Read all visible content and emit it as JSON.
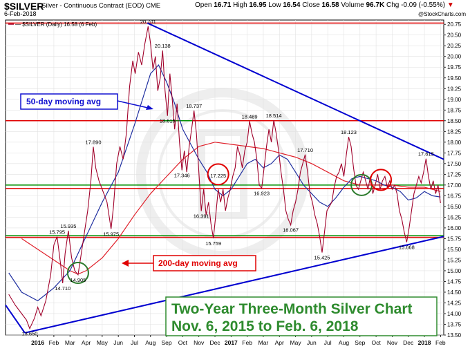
{
  "header": {
    "symbol": "$SILVER",
    "description": "Silver - Continuous Contract (EOD)",
    "exchange": "CME",
    "date": "6-Feb-2018",
    "open_label": "Open",
    "open": "16.71",
    "high_label": "High",
    "high": "16.95",
    "low_label": "Low",
    "low": "16.54",
    "close_label": "Close",
    "close": "16.58",
    "volume_label": "Volume",
    "volume": "96.7K",
    "chg_label": "Chg",
    "chg": "-0.09 (-0.55%)",
    "copyright": "@StockCharts.com"
  },
  "chart_data": {
    "type": "line",
    "legend": "— $SILVER (Daily) 16.58 (6 Feb)",
    "ylim": [
      13.5,
      20.85
    ],
    "yticks": [
      13.5,
      13.75,
      14.0,
      14.25,
      14.5,
      14.75,
      15.0,
      15.25,
      15.5,
      15.75,
      16.0,
      16.25,
      16.5,
      16.75,
      17.0,
      17.25,
      17.5,
      17.75,
      18.0,
      18.25,
      18.5,
      18.75,
      19.0,
      19.25,
      19.5,
      19.75,
      20.0,
      20.25,
      20.5,
      20.75
    ],
    "ytick_labels": [
      "13.50",
      "13.75",
      "14.00",
      "14.25",
      "14.50",
      "14.75",
      "15.00",
      "15.25",
      "15.50",
      "15.75",
      "16.00",
      "16.25",
      "16.50",
      "16.75",
      "17.00",
      "17.25",
      "17.50",
      "17.75",
      "18.00",
      "18.25",
      "18.50",
      "18.75",
      "19.00",
      "19.25",
      "19.50",
      "19.75",
      "20.00",
      "20.25",
      "20.50",
      "20.75"
    ],
    "xlim": [
      0,
      27.2
    ],
    "months": [
      {
        "label": "2016",
        "x": 2.0,
        "bold": true
      },
      {
        "label": "Feb",
        "x": 3.0
      },
      {
        "label": "Mar",
        "x": 4.0
      },
      {
        "label": "Apr",
        "x": 5.0
      },
      {
        "label": "May",
        "x": 6.0
      },
      {
        "label": "Jun",
        "x": 7.0
      },
      {
        "label": "Jul",
        "x": 8.0
      },
      {
        "label": "Aug",
        "x": 9.0
      },
      {
        "label": "Sep",
        "x": 10.0
      },
      {
        "label": "Oct",
        "x": 11.0
      },
      {
        "label": "Nov",
        "x": 12.0
      },
      {
        "label": "Dec",
        "x": 13.0
      },
      {
        "label": "2017",
        "x": 14.0,
        "bold": true
      },
      {
        "label": "Feb",
        "x": 15.0
      },
      {
        "label": "Mar",
        "x": 16.0
      },
      {
        "label": "Apr",
        "x": 17.0
      },
      {
        "label": "May",
        "x": 18.0
      },
      {
        "label": "Jun",
        "x": 19.0
      },
      {
        "label": "Jul",
        "x": 20.0
      },
      {
        "label": "Aug",
        "x": 21.0
      },
      {
        "label": "Sep",
        "x": 22.0
      },
      {
        "label": "Oct",
        "x": 23.0
      },
      {
        "label": "Nov",
        "x": 24.0
      },
      {
        "label": "Dec",
        "x": 25.0
      },
      {
        "label": "2018",
        "x": 26.0,
        "bold": true
      },
      {
        "label": "Feb",
        "x": 27.0
      }
    ],
    "price": [
      [
        0.2,
        14.45
      ],
      [
        0.6,
        14.2
      ],
      [
        1.0,
        14.0
      ],
      [
        1.3,
        13.85
      ],
      [
        1.5,
        13.65
      ],
      [
        1.8,
        13.9
      ],
      [
        2.0,
        14.15
      ],
      [
        2.2,
        13.95
      ],
      [
        2.5,
        14.3
      ],
      [
        2.8,
        14.9
      ],
      [
        3.0,
        15.6
      ],
      [
        3.2,
        15.795
      ],
      [
        3.4,
        15.2
      ],
      [
        3.55,
        14.71
      ],
      [
        3.7,
        15.4
      ],
      [
        3.9,
        15.935
      ],
      [
        4.1,
        15.3
      ],
      [
        4.3,
        15.0
      ],
      [
        4.5,
        14.905
      ],
      [
        4.7,
        15.4
      ],
      [
        4.9,
        15.9
      ],
      [
        5.1,
        16.4
      ],
      [
        5.3,
        17.1
      ],
      [
        5.45,
        17.89
      ],
      [
        5.6,
        17.4
      ],
      [
        5.8,
        17.1
      ],
      [
        6.0,
        16.9
      ],
      [
        6.3,
        16.6
      ],
      [
        6.55,
        15.975
      ],
      [
        6.7,
        16.5
      ],
      [
        6.9,
        17.5
      ],
      [
        7.1,
        17.9
      ],
      [
        7.3,
        17.6
      ],
      [
        7.5,
        18.2
      ],
      [
        7.7,
        19.3
      ],
      [
        7.9,
        19.9
      ],
      [
        8.05,
        19.6
      ],
      [
        8.25,
        20.1
      ],
      [
        8.45,
        19.8
      ],
      [
        8.65,
        20.3
      ],
      [
        8.85,
        20.701
      ],
      [
        9.0,
        20.3
      ],
      [
        9.15,
        19.7
      ],
      [
        9.3,
        20.0
      ],
      [
        9.45,
        19.2
      ],
      [
        9.6,
        19.5
      ],
      [
        9.75,
        20.138
      ],
      [
        9.9,
        19.2
      ],
      [
        10.05,
        18.615
      ],
      [
        10.2,
        19.6
      ],
      [
        10.35,
        19.0
      ],
      [
        10.5,
        18.3
      ],
      [
        10.65,
        18.9
      ],
      [
        10.8,
        18.0
      ],
      [
        10.95,
        17.346
      ],
      [
        11.1,
        17.8
      ],
      [
        11.25,
        17.3
      ],
      [
        11.4,
        17.9
      ],
      [
        11.55,
        18.3
      ],
      [
        11.7,
        18.737
      ],
      [
        11.85,
        18.2
      ],
      [
        12.0,
        17.3
      ],
      [
        12.15,
        16.391
      ],
      [
        12.3,
        16.9
      ],
      [
        12.45,
        16.3
      ],
      [
        12.6,
        16.6
      ],
      [
        12.75,
        16.1
      ],
      [
        12.9,
        15.759
      ],
      [
        13.05,
        16.3
      ],
      [
        13.2,
        16.9
      ],
      [
        13.35,
        16.6
      ],
      [
        13.5,
        16.9
      ],
      [
        13.65,
        16.4
      ],
      [
        13.8,
        16.7
      ],
      [
        13.95,
        16.9
      ],
      [
        14.1,
        17.2
      ],
      [
        14.25,
        17.4
      ],
      [
        14.4,
        17.9
      ],
      [
        14.55,
        17.7
      ],
      [
        14.7,
        17.4
      ],
      [
        14.85,
        17.8
      ],
      [
        15.0,
        18.0
      ],
      [
        15.15,
        18.489
      ],
      [
        15.3,
        18.2
      ],
      [
        15.45,
        18.0
      ],
      [
        15.6,
        17.6
      ],
      [
        15.75,
        17.0
      ],
      [
        15.9,
        16.923
      ],
      [
        16.05,
        17.4
      ],
      [
        16.2,
        17.9
      ],
      [
        16.35,
        18.3
      ],
      [
        16.5,
        18.0
      ],
      [
        16.65,
        18.514
      ],
      [
        16.8,
        18.2
      ],
      [
        16.95,
        17.8
      ],
      [
        17.1,
        17.3
      ],
      [
        17.25,
        16.9
      ],
      [
        17.4,
        16.4
      ],
      [
        17.55,
        16.2
      ],
      [
        17.7,
        16.067
      ],
      [
        17.85,
        16.4
      ],
      [
        18.0,
        16.6
      ],
      [
        18.15,
        16.9
      ],
      [
        18.3,
        17.3
      ],
      [
        18.45,
        17.5
      ],
      [
        18.6,
        17.71
      ],
      [
        18.75,
        17.3
      ],
      [
        18.9,
        16.8
      ],
      [
        19.05,
        16.6
      ],
      [
        19.2,
        16.3
      ],
      [
        19.35,
        16.1
      ],
      [
        19.5,
        15.8
      ],
      [
        19.65,
        15.425
      ],
      [
        19.8,
        15.9
      ],
      [
        19.95,
        16.4
      ],
      [
        20.1,
        16.5
      ],
      [
        20.25,
        16.6
      ],
      [
        20.4,
        16.95
      ],
      [
        20.55,
        17.2
      ],
      [
        20.7,
        17.3
      ],
      [
        20.85,
        17.5
      ],
      [
        21.0,
        17.2
      ],
      [
        21.15,
        17.7
      ],
      [
        21.3,
        18.123
      ],
      [
        21.45,
        17.9
      ],
      [
        21.6,
        17.4
      ],
      [
        21.75,
        17.0
      ],
      [
        21.9,
        16.9
      ],
      [
        22.05,
        17.1
      ],
      [
        22.2,
        17.3
      ],
      [
        22.35,
        17.1
      ],
      [
        22.5,
        16.9
      ],
      [
        22.65,
        17.2
      ],
      [
        22.8,
        16.8
      ],
      [
        22.95,
        17.0
      ],
      [
        23.1,
        17.25
      ],
      [
        23.25,
        16.9
      ],
      [
        23.4,
        17.1
      ],
      [
        23.55,
        17.2
      ],
      [
        23.7,
        16.95
      ],
      [
        23.85,
        17.1
      ],
      [
        24.0,
        16.9
      ],
      [
        24.15,
        17.0
      ],
      [
        24.3,
        16.8
      ],
      [
        24.45,
        16.4
      ],
      [
        24.6,
        16.2
      ],
      [
        24.75,
        15.9
      ],
      [
        24.9,
        15.668
      ],
      [
        25.05,
        16.0
      ],
      [
        25.2,
        16.4
      ],
      [
        25.35,
        16.8
      ],
      [
        25.5,
        17.0
      ],
      [
        25.65,
        17.2
      ],
      [
        25.8,
        17.05
      ],
      [
        25.95,
        17.3
      ],
      [
        26.1,
        17.615
      ],
      [
        26.25,
        17.2
      ],
      [
        26.4,
        16.9
      ],
      [
        26.55,
        17.1
      ],
      [
        26.7,
        16.8
      ],
      [
        26.85,
        17.0
      ],
      [
        27.0,
        16.58
      ]
    ],
    "ma50": [
      [
        0.2,
        14.95
      ],
      [
        1.0,
        14.5
      ],
      [
        2.0,
        14.3
      ],
      [
        3.0,
        14.6
      ],
      [
        4.0,
        15.0
      ],
      [
        5.0,
        15.8
      ],
      [
        6.0,
        16.6
      ],
      [
        7.0,
        17.3
      ],
      [
        8.0,
        18.4
      ],
      [
        9.0,
        19.6
      ],
      [
        9.5,
        19.8
      ],
      [
        10.0,
        19.4
      ],
      [
        10.5,
        18.9
      ],
      [
        11.0,
        18.3
      ],
      [
        12.0,
        17.6
      ],
      [
        12.5,
        17.3
      ],
      [
        13.0,
        16.9
      ],
      [
        13.5,
        16.75
      ],
      [
        14.0,
        16.9
      ],
      [
        14.5,
        17.2
      ],
      [
        15.0,
        17.5
      ],
      [
        15.5,
        17.6
      ],
      [
        16.0,
        17.4
      ],
      [
        16.5,
        17.5
      ],
      [
        17.0,
        17.7
      ],
      [
        17.5,
        17.6
      ],
      [
        18.0,
        17.3
      ],
      [
        18.5,
        17.0
      ],
      [
        19.0,
        16.8
      ],
      [
        19.5,
        16.6
      ],
      [
        20.0,
        16.5
      ],
      [
        20.5,
        16.7
      ],
      [
        21.0,
        16.95
      ],
      [
        21.5,
        17.15
      ],
      [
        22.0,
        17.2
      ],
      [
        22.5,
        17.15
      ],
      [
        23.0,
        17.1
      ],
      [
        23.5,
        17.0
      ],
      [
        24.0,
        16.95
      ],
      [
        24.5,
        16.85
      ],
      [
        25.0,
        16.65
      ],
      [
        25.5,
        16.7
      ],
      [
        26.0,
        16.85
      ],
      [
        26.5,
        16.75
      ],
      [
        27.0,
        16.72
      ]
    ],
    "ma200": [
      [
        1.0,
        15.75
      ],
      [
        2.0,
        15.5
      ],
      [
        3.0,
        15.25
      ],
      [
        4.0,
        15.0
      ],
      [
        4.5,
        14.92
      ],
      [
        5.0,
        15.0
      ],
      [
        5.5,
        15.15
      ],
      [
        6.0,
        15.3
      ],
      [
        7.0,
        15.75
      ],
      [
        8.0,
        16.3
      ],
      [
        9.0,
        16.8
      ],
      [
        10.0,
        17.2
      ],
      [
        11.0,
        17.6
      ],
      [
        12.0,
        17.9
      ],
      [
        13.0,
        18.0
      ],
      [
        14.0,
        17.95
      ],
      [
        15.0,
        17.9
      ],
      [
        16.0,
        17.85
      ],
      [
        17.0,
        17.75
      ],
      [
        18.0,
        17.65
      ],
      [
        19.0,
        17.5
      ],
      [
        20.0,
        17.3
      ],
      [
        21.0,
        17.1
      ],
      [
        22.0,
        17.0
      ],
      [
        23.0,
        17.0
      ],
      [
        24.0,
        17.0
      ],
      [
        25.0,
        16.95
      ],
      [
        26.0,
        16.95
      ],
      [
        27.0,
        16.85
      ]
    ],
    "h_lines": [
      {
        "y": 20.78,
        "color": "#e00000"
      },
      {
        "y": 18.5,
        "color": "#e00000"
      },
      {
        "y": 18.5,
        "color": "#009000",
        "from": 9.8,
        "to": 11.6
      },
      {
        "y": 17.0,
        "color": "#009000"
      },
      {
        "y": 16.92,
        "color": "#e00000"
      },
      {
        "y": 15.82,
        "color": "#009000"
      },
      {
        "y": 15.78,
        "color": "#e00000"
      }
    ],
    "trendlines": [
      {
        "from": [
          8.8,
          20.78
        ],
        "to": [
          27.2,
          17.6
        ],
        "color": "#0000d0"
      },
      {
        "from": [
          0.0,
          14.2
        ],
        "to": [
          1.2,
          13.55
        ],
        "color": "#0000d0"
      },
      {
        "from": [
          1.2,
          13.55
        ],
        "to": [
          27.2,
          15.8
        ],
        "color": "#0000d0"
      }
    ],
    "circles": [
      {
        "x": 4.5,
        "y": 14.95,
        "color": "#2a7a2a"
      },
      {
        "x": 13.2,
        "y": 17.25,
        "color": "#e00000"
      },
      {
        "x": 22.1,
        "y": 17.0,
        "color": "#2a7a2a"
      },
      {
        "x": 23.3,
        "y": 17.12,
        "color": "#e00000"
      }
    ],
    "data_labels": [
      {
        "text": "13.650",
        "x": 1.5,
        "y": 13.65,
        "pos": "below"
      },
      {
        "text": "15.795",
        "x": 3.2,
        "y": 15.795,
        "pos": "above"
      },
      {
        "text": "14.710",
        "x": 3.55,
        "y": 14.71,
        "pos": "below"
      },
      {
        "text": "15.935",
        "x": 3.9,
        "y": 15.935,
        "pos": "above"
      },
      {
        "text": "14.905",
        "x": 4.5,
        "y": 14.905,
        "pos": "below"
      },
      {
        "text": "17.890",
        "x": 5.45,
        "y": 17.89,
        "pos": "above"
      },
      {
        "text": "15.975",
        "x": 6.55,
        "y": 15.975,
        "pos": "below"
      },
      {
        "text": "20.701",
        "x": 8.85,
        "y": 20.701,
        "pos": "above"
      },
      {
        "text": "20.138",
        "x": 9.75,
        "y": 20.138,
        "pos": "above"
      },
      {
        "text": "18.615",
        "x": 10.05,
        "y": 18.615,
        "pos": "below"
      },
      {
        "text": "18.737",
        "x": 11.7,
        "y": 18.737,
        "pos": "above"
      },
      {
        "text": "17.346",
        "x": 10.95,
        "y": 17.346,
        "pos": "below"
      },
      {
        "text": "17.225",
        "x": 13.2,
        "y": 17.225,
        "pos": "mid"
      },
      {
        "text": "16.391",
        "x": 12.15,
        "y": 16.391,
        "pos": "below"
      },
      {
        "text": "15.759",
        "x": 12.9,
        "y": 15.759,
        "pos": "below"
      },
      {
        "text": "18.489",
        "x": 15.15,
        "y": 18.489,
        "pos": "above"
      },
      {
        "text": "16.923",
        "x": 15.9,
        "y": 16.923,
        "pos": "below"
      },
      {
        "text": "18.514",
        "x": 16.65,
        "y": 18.514,
        "pos": "above"
      },
      {
        "text": "16.067",
        "x": 17.7,
        "y": 16.067,
        "pos": "below"
      },
      {
        "text": "17.710",
        "x": 18.6,
        "y": 17.71,
        "pos": "above"
      },
      {
        "text": "15.425",
        "x": 19.65,
        "y": 15.425,
        "pos": "below"
      },
      {
        "text": "18.123",
        "x": 21.3,
        "y": 18.123,
        "pos": "above"
      },
      {
        "text": "15.668",
        "x": 24.9,
        "y": 15.668,
        "pos": "below"
      },
      {
        "text": "17.615",
        "x": 26.1,
        "y": 17.615,
        "pos": "above"
      }
    ],
    "annotations": {
      "ma50_label": "50-day moving avg",
      "ma200_label": "200-day moving avg",
      "title_line1": "Two-Year Three-Month Silver Chart",
      "title_line2": "Nov. 6, 2015 to Feb. 6, 2018"
    },
    "colors": {
      "price": "#a0002a",
      "ma50": "#2030a0",
      "ma200": "#e0202a",
      "annotation_blue": "#1010d0",
      "annotation_red": "#e00000",
      "title_green": "#2e8b2e"
    }
  }
}
